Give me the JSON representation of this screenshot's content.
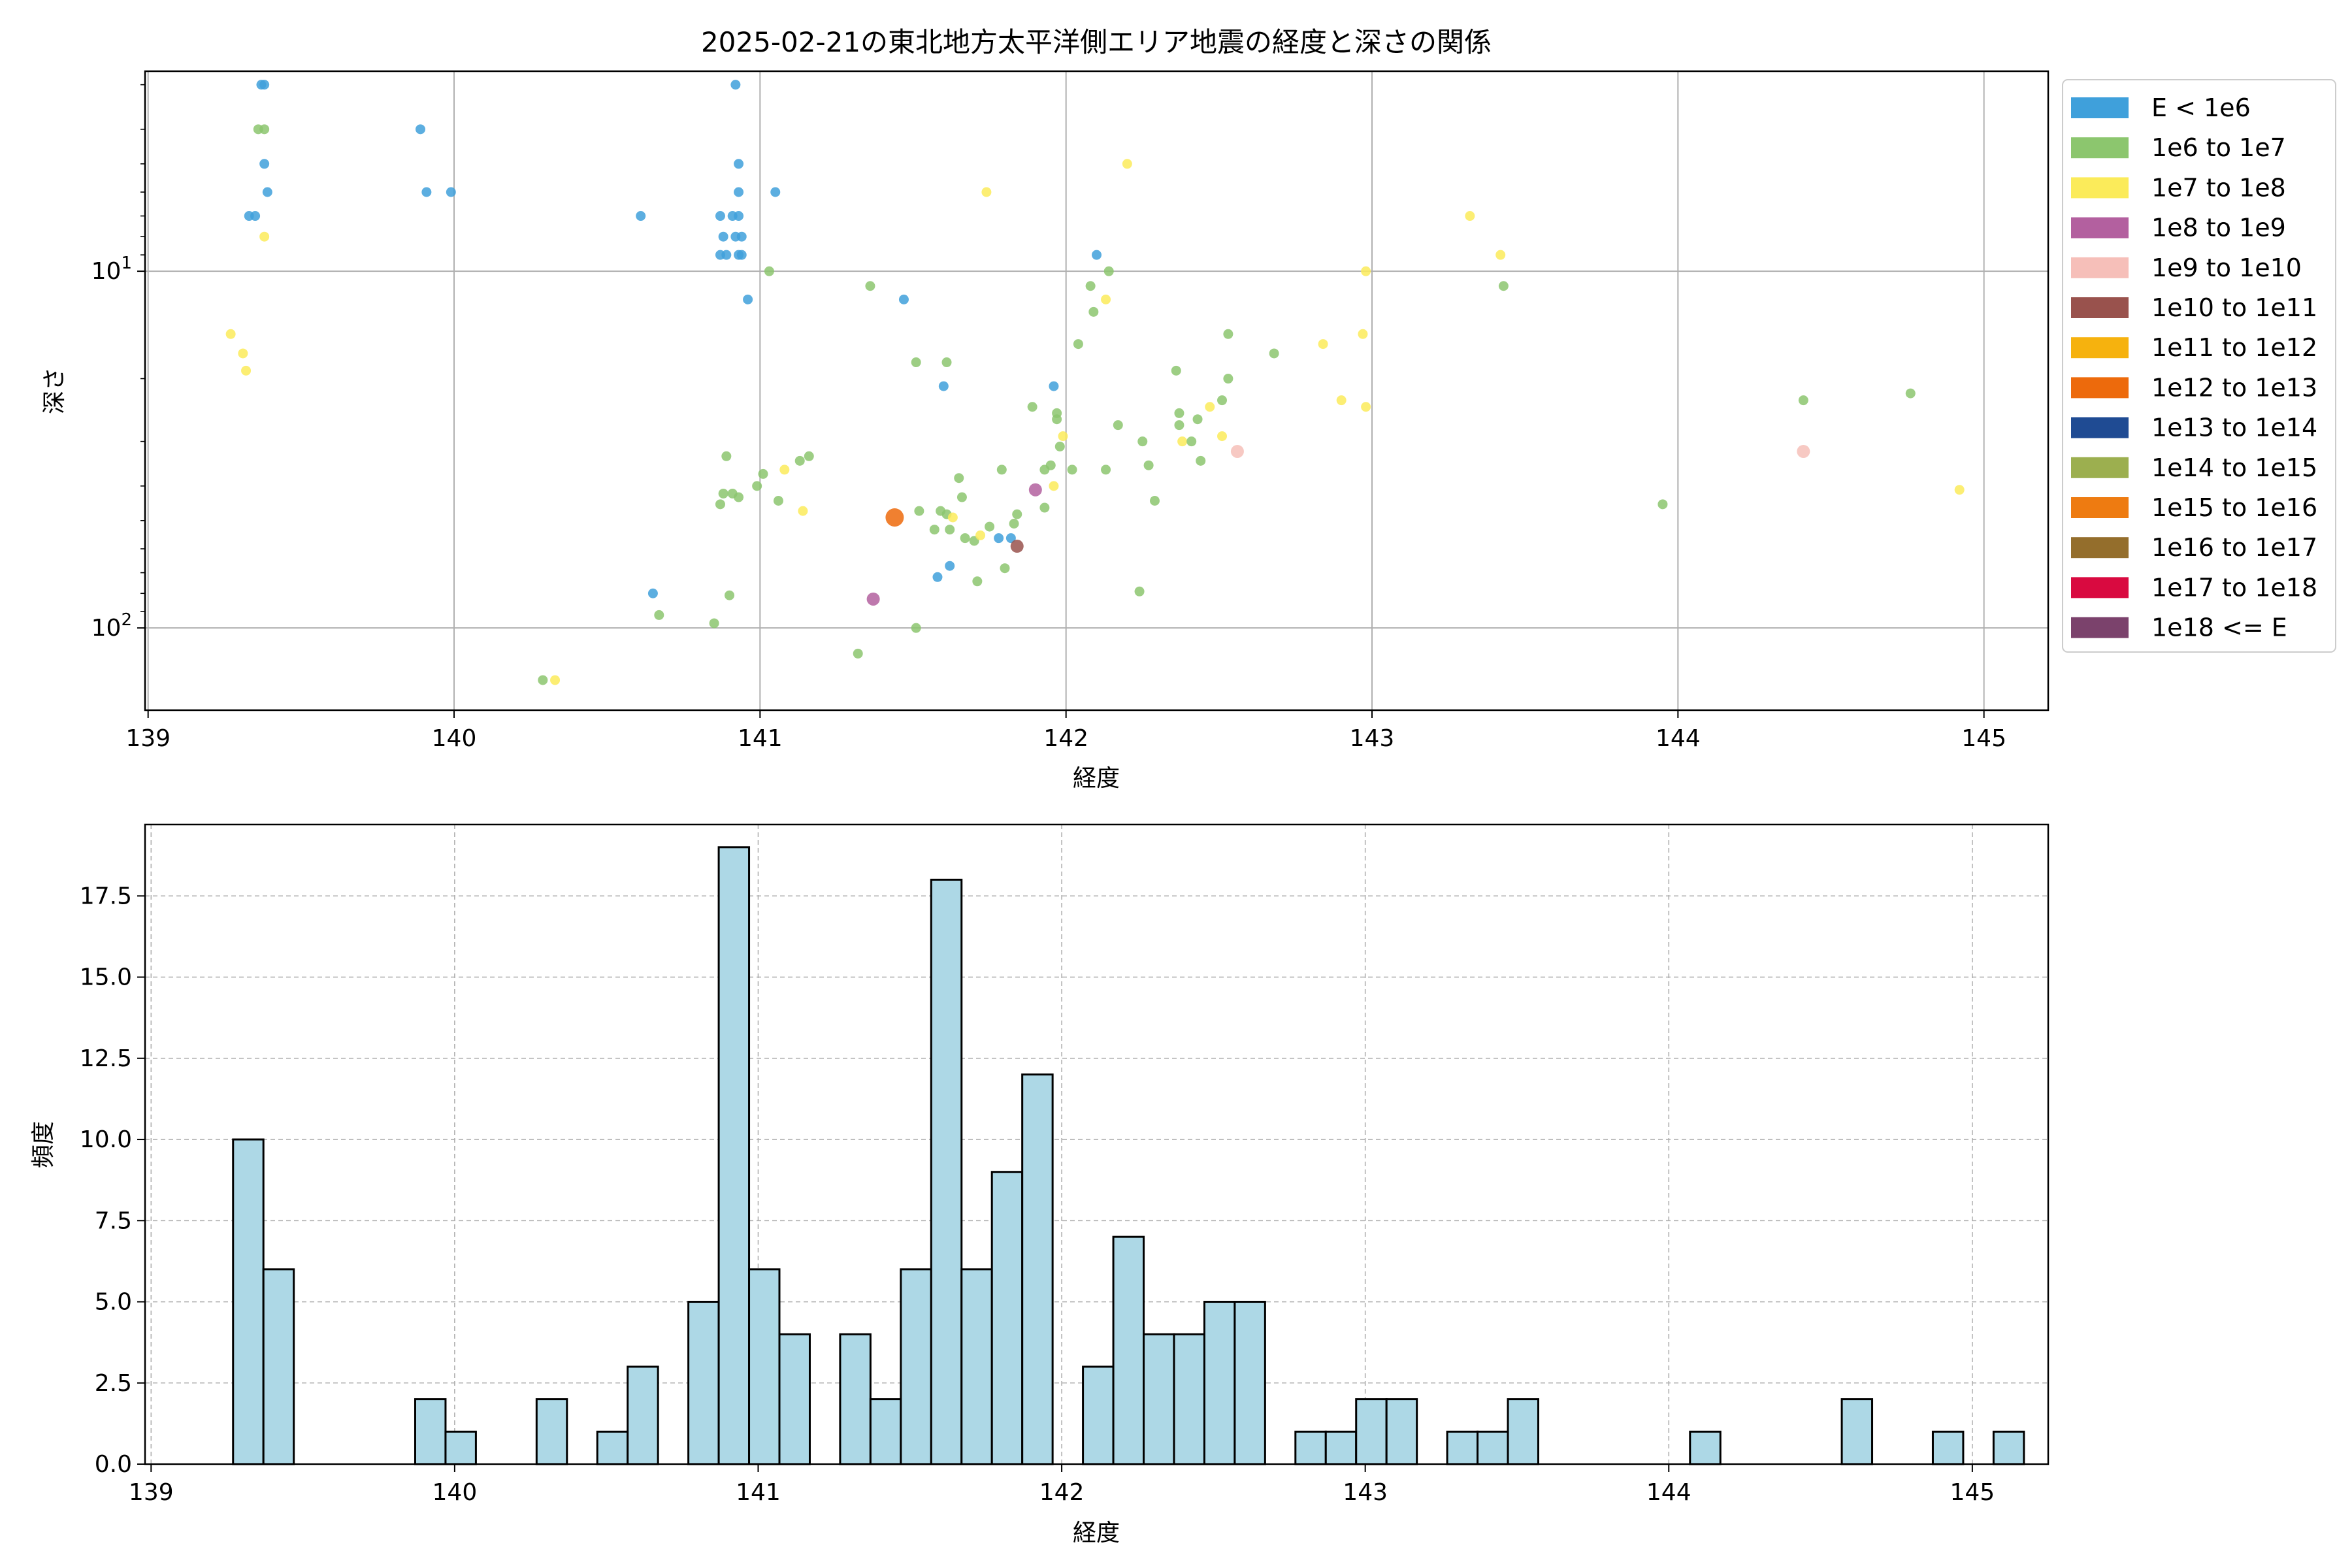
{
  "chart_data": [
    {
      "type": "scatter",
      "title": "2025-02-21の東北地方太平洋側エリア地震の経度と深さの関係",
      "xlabel": "経度",
      "ylabel": "深さ",
      "xlim": [
        138.99,
        145.21
      ],
      "ylim": [
        170,
        2.75
      ],
      "yscale": "log-inverted",
      "xticks": [
        "139",
        "140",
        "141",
        "142",
        "143",
        "144",
        "145"
      ],
      "yticks": [
        "10^1",
        "10^2"
      ],
      "grid": true,
      "legend_position": "outside-right",
      "legend": [
        {
          "label": "E < 1e6",
          "color": "#3fa0db"
        },
        {
          "label": "1e6 to 1e7",
          "color": "#8cc66e"
        },
        {
          "label": "1e7 to 1e8",
          "color": "#fbeb5a"
        },
        {
          "label": "1e8 to 1e9",
          "color": "#b3609f"
        },
        {
          "label": "1e9 to 1e10",
          "color": "#f6bfb9"
        },
        {
          "label": "1e10 to 1e11",
          "color": "#99524d"
        },
        {
          "label": "1e11 to 1e12",
          "color": "#f6b20e"
        },
        {
          "label": "1e12 to 1e13",
          "color": "#ed6a0c"
        },
        {
          "label": "1e13 to 1e14",
          "color": "#1f4b93"
        },
        {
          "label": "1e14 to 1e15",
          "color": "#9caf4f"
        },
        {
          "label": "1e15 to 1e16",
          "color": "#ee7b11"
        },
        {
          "label": "1e16 to 1e17",
          "color": "#946e2c"
        },
        {
          "label": "1e17 to 1e18",
          "color": "#d90a40"
        },
        {
          "label": "1e18 <= E",
          "color": "#7b426c"
        }
      ],
      "points": [
        [
          139.37,
          3.0,
          0
        ],
        [
          139.38,
          3.0,
          0
        ],
        [
          139.36,
          4.0,
          1
        ],
        [
          139.38,
          4.0,
          1
        ],
        [
          139.38,
          5.0,
          0
        ],
        [
          139.39,
          6.0,
          0
        ],
        [
          139.33,
          7.0,
          0
        ],
        [
          139.35,
          7.0,
          0
        ],
        [
          139.38,
          8.0,
          2
        ],
        [
          139.27,
          15.0,
          2
        ],
        [
          139.31,
          17.0,
          2
        ],
        [
          139.32,
          19.0,
          2
        ],
        [
          139.89,
          4.0,
          0
        ],
        [
          139.91,
          6.0,
          0
        ],
        [
          139.99,
          6.0,
          0
        ],
        [
          140.61,
          7.0,
          0
        ],
        [
          140.29,
          140.0,
          1
        ],
        [
          140.33,
          140.0,
          2
        ],
        [
          140.65,
          80.0,
          0
        ],
        [
          140.67,
          92.0,
          1
        ],
        [
          140.92,
          3.0,
          0
        ],
        [
          140.93,
          5.0,
          0
        ],
        [
          140.93,
          6.0,
          0
        ],
        [
          140.87,
          7.0,
          0
        ],
        [
          140.91,
          7.0,
          0
        ],
        [
          140.93,
          7.0,
          0
        ],
        [
          140.88,
          8.0,
          0
        ],
        [
          140.92,
          8.0,
          0
        ],
        [
          140.94,
          8.0,
          0
        ],
        [
          140.87,
          9.0,
          0
        ],
        [
          140.89,
          9.0,
          0
        ],
        [
          140.93,
          9.0,
          0
        ],
        [
          140.94,
          9.0,
          0
        ],
        [
          140.96,
          12.0,
          0
        ],
        [
          141.03,
          10.0,
          1
        ],
        [
          141.05,
          6.0,
          0
        ],
        [
          140.89,
          33.0,
          1
        ],
        [
          140.88,
          42.0,
          1
        ],
        [
          140.91,
          42.0,
          1
        ],
        [
          140.93,
          43.0,
          1
        ],
        [
          140.87,
          45.0,
          1
        ],
        [
          140.99,
          40.0,
          1
        ],
        [
          141.01,
          37.0,
          1
        ],
        [
          141.06,
          44.0,
          1
        ],
        [
          141.08,
          36.0,
          2
        ],
        [
          141.13,
          34.0,
          1
        ],
        [
          141.16,
          33.0,
          1
        ],
        [
          141.14,
          47.0,
          2
        ],
        [
          140.9,
          81.0,
          1
        ],
        [
          140.85,
          97.0,
          1
        ],
        [
          141.32,
          118.0,
          1
        ],
        [
          141.36,
          11.0,
          1
        ],
        [
          141.47,
          12.0,
          0
        ],
        [
          141.51,
          18.0,
          1
        ],
        [
          141.61,
          18.0,
          1
        ],
        [
          141.6,
          21.0,
          0
        ],
        [
          141.51,
          100.0,
          1
        ],
        [
          141.44,
          49.0,
          7
        ],
        [
          141.37,
          83.0,
          3
        ],
        [
          141.52,
          47.0,
          1
        ],
        [
          141.57,
          53.0,
          1
        ],
        [
          141.59,
          47.0,
          1
        ],
        [
          141.61,
          48.0,
          1
        ],
        [
          141.62,
          53.0,
          1
        ],
        [
          141.63,
          49.0,
          2
        ],
        [
          141.66,
          43.0,
          1
        ],
        [
          141.65,
          38.0,
          1
        ],
        [
          141.67,
          56.0,
          1
        ],
        [
          141.7,
          57.0,
          1
        ],
        [
          141.72,
          55.0,
          2
        ],
        [
          141.75,
          52.0,
          1
        ],
        [
          141.58,
          72.0,
          0
        ],
        [
          141.62,
          67.0,
          0
        ],
        [
          141.71,
          74.0,
          1
        ],
        [
          141.79,
          36.0,
          1
        ],
        [
          141.8,
          68.0,
          1
        ],
        [
          141.78,
          56.0,
          0
        ],
        [
          141.82,
          56.0,
          0
        ],
        [
          141.83,
          51.0,
          1
        ],
        [
          141.84,
          48.0,
          1
        ],
        [
          141.84,
          59.0,
          5
        ],
        [
          141.89,
          24.0,
          1
        ],
        [
          141.9,
          41.0,
          3
        ],
        [
          141.93,
          36.0,
          1
        ],
        [
          141.95,
          35.0,
          1
        ],
        [
          141.93,
          46.0,
          1
        ],
        [
          141.96,
          40.0,
          2
        ],
        [
          141.97,
          26.0,
          1
        ],
        [
          141.97,
          25.0,
          1
        ],
        [
          141.98,
          31.0,
          1
        ],
        [
          141.99,
          29.0,
          2
        ],
        [
          141.96,
          21.0,
          0
        ],
        [
          141.74,
          6.0,
          2
        ],
        [
          142.04,
          16.0,
          1
        ],
        [
          142.08,
          11.0,
          1
        ],
        [
          142.09,
          13.0,
          1
        ],
        [
          142.1,
          9.0,
          0
        ],
        [
          142.14,
          10.0,
          1
        ],
        [
          142.13,
          12.0,
          2
        ],
        [
          142.2,
          5.0,
          2
        ],
        [
          142.02,
          36.0,
          1
        ],
        [
          142.13,
          36.0,
          1
        ],
        [
          142.17,
          27.0,
          1
        ],
        [
          142.24,
          79.0,
          1
        ],
        [
          142.25,
          30.0,
          1
        ],
        [
          142.27,
          35.0,
          1
        ],
        [
          142.29,
          44.0,
          1
        ],
        [
          142.36,
          19.0,
          1
        ],
        [
          142.37,
          25.0,
          1
        ],
        [
          142.37,
          27.0,
          1
        ],
        [
          142.38,
          30.0,
          2
        ],
        [
          142.41,
          30.0,
          1
        ],
        [
          142.43,
          26.0,
          1
        ],
        [
          142.44,
          34.0,
          1
        ],
        [
          142.47,
          24.0,
          2
        ],
        [
          142.51,
          23.0,
          1
        ],
        [
          142.51,
          29.0,
          2
        ],
        [
          142.53,
          20.0,
          1
        ],
        [
          142.53,
          15.0,
          1
        ],
        [
          142.56,
          32.0,
          4
        ],
        [
          142.68,
          17.0,
          1
        ],
        [
          142.84,
          16.0,
          2
        ],
        [
          142.9,
          23.0,
          2
        ],
        [
          142.97,
          15.0,
          2
        ],
        [
          142.98,
          24.0,
          2
        ],
        [
          142.98,
          10.0,
          2
        ],
        [
          143.32,
          7.0,
          2
        ],
        [
          143.42,
          9.0,
          2
        ],
        [
          143.43,
          11.0,
          1
        ],
        [
          143.95,
          45.0,
          1
        ],
        [
          144.41,
          23.0,
          1
        ],
        [
          144.41,
          32.0,
          4
        ],
        [
          144.76,
          22.0,
          1
        ],
        [
          144.92,
          41.0,
          2
        ]
      ]
    },
    {
      "type": "bar",
      "title": "",
      "xlabel": "経度",
      "ylabel": "頻度",
      "xlim": [
        138.98,
        145.25
      ],
      "ylim": [
        0,
        19.7
      ],
      "xticks": [
        "139",
        "140",
        "141",
        "142",
        "143",
        "144",
        "145"
      ],
      "yticks": [
        "0.0",
        "2.5",
        "5.0",
        "7.5",
        "10.0",
        "12.5",
        "15.0",
        "17.5"
      ],
      "grid": true,
      "bar_color": "#add8e6",
      "bin_start": 139.27,
      "bin_width": 0.1,
      "values": [
        10,
        6,
        0,
        0,
        0,
        0,
        2,
        1,
        0,
        0,
        2,
        0,
        1,
        3,
        0,
        5,
        19,
        6,
        4,
        0,
        4,
        2,
        6,
        18,
        6,
        9,
        12,
        0,
        3,
        7,
        4,
        4,
        5,
        5,
        0,
        1,
        1,
        2,
        2,
        0,
        1,
        1,
        2,
        0,
        0,
        0,
        0,
        0,
        1,
        0,
        0,
        0,
        0,
        2,
        0,
        0,
        1,
        0,
        1
      ]
    }
  ]
}
